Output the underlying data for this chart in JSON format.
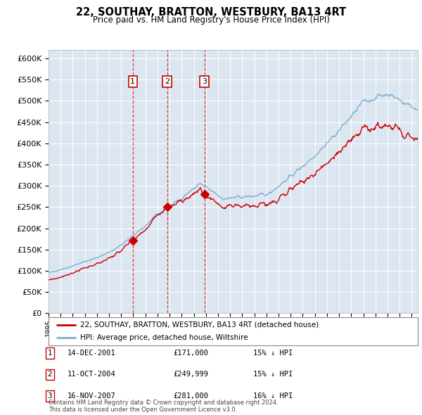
{
  "title": "22, SOUTHAY, BRATTON, WESTBURY, BA13 4RT",
  "subtitle": "Price paid vs. HM Land Registry's House Price Index (HPI)",
  "background_color": "#dce6f1",
  "plot_bg_color": "#dce6f1",
  "hpi_color": "#7bafd4",
  "price_color": "#cc0000",
  "vline_color": "#cc0000",
  "transactions": [
    {
      "num": 1,
      "date_label": "14-DEC-2001",
      "x_year": 2001.96,
      "price": 171000,
      "hpi_pct": "15% ↓ HPI"
    },
    {
      "num": 2,
      "date_label": "11-OCT-2004",
      "x_year": 2004.79,
      "price": 249999,
      "hpi_pct": "15% ↓ HPI"
    },
    {
      "num": 3,
      "date_label": "16-NOV-2007",
      "x_year": 2007.88,
      "price": 281000,
      "hpi_pct": "16% ↓ HPI"
    }
  ],
  "legend_line1": "22, SOUTHAY, BRATTON, WESTBURY, BA13 4RT (detached house)",
  "legend_line2": "HPI: Average price, detached house, Wiltshire",
  "footnote": "Contains HM Land Registry data © Crown copyright and database right 2024.\nThis data is licensed under the Open Government Licence v3.0.",
  "ylim": [
    0,
    620000
  ],
  "yticks": [
    0,
    50000,
    100000,
    150000,
    200000,
    250000,
    300000,
    350000,
    400000,
    450000,
    500000,
    550000,
    600000
  ],
  "xlim_start": 1995.0,
  "xlim_end": 2025.5
}
